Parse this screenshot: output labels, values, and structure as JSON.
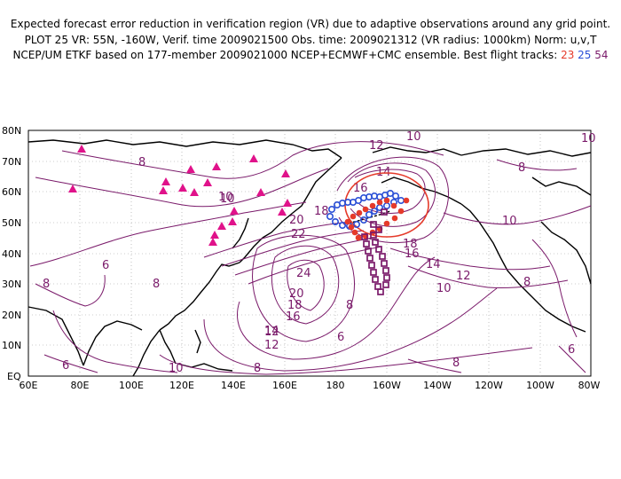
{
  "header": {
    "line1": "Expected forecast error reduction in verification region (VR) due to adaptive observations around any grid point.",
    "line2": "PLOT 25 VR: 55N, -160W, Verif. time 2009021500 Obs. time: 2009021312 (VR radius: 1000km) Norm: u,v,T",
    "line3_prefix": "NCEP/UM ETKF based on 177-member 2009021000 NCEP+ECMWF+CMC ensemble. Best flight tracks:",
    "track_ids": [
      "23",
      "25",
      "54"
    ]
  },
  "axes": {
    "lat_labels": [
      "80N",
      "70N",
      "60N",
      "50N",
      "40N",
      "30N",
      "20N",
      "10N",
      "EQ"
    ],
    "lon_labels": [
      "60E",
      "80E",
      "100E",
      "120E",
      "140E",
      "160E",
      "180",
      "160W",
      "140W",
      "120W",
      "100W",
      "80W"
    ]
  },
  "contour_labels": [
    "10",
    "12",
    "8",
    "10",
    "14",
    "16",
    "18",
    "20",
    "22",
    "24",
    "20",
    "18",
    "16",
    "14",
    "12",
    "10",
    "8",
    "6",
    "6",
    "8",
    "10",
    "8",
    "6",
    "8",
    "8",
    "18",
    "16",
    "14",
    "12",
    "10",
    "8",
    "10",
    "8",
    "6",
    "10",
    "12"
  ],
  "colors": {
    "contour": "#7a1a6a",
    "track23": "#e53a2a",
    "track25": "#2a4fd6",
    "track54": "#7a1a6a",
    "dropsonde_sites": "#e0128a",
    "vr_circle": "#e53a2a"
  }
}
